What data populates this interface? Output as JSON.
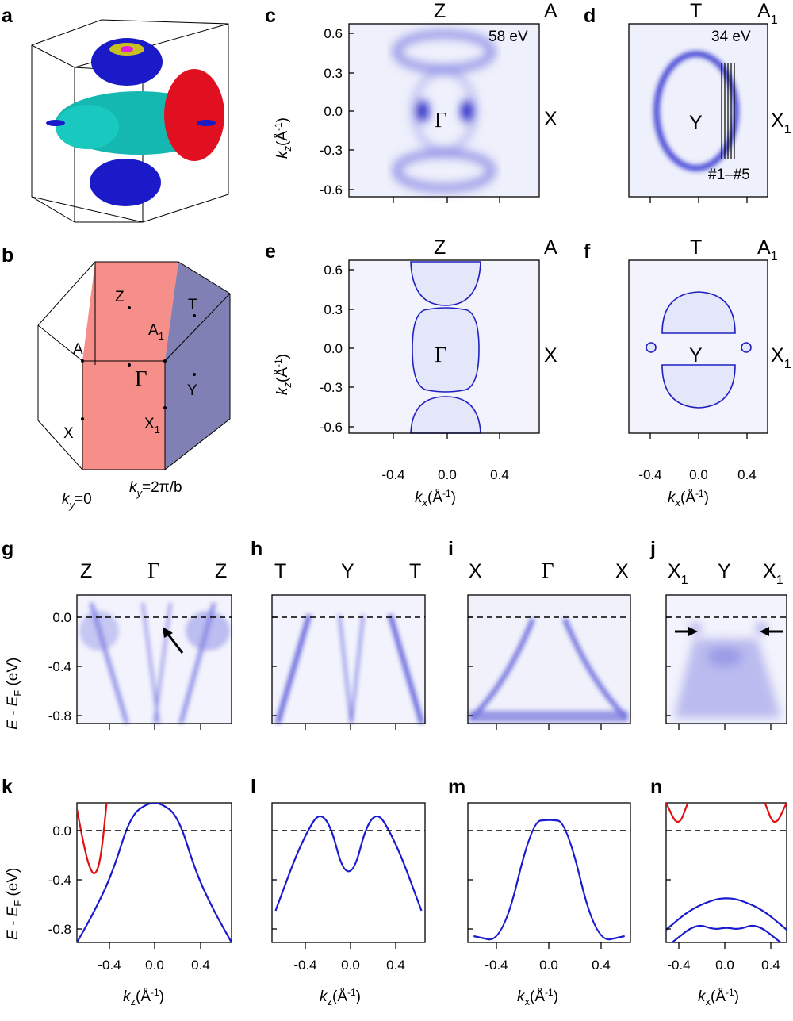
{
  "panel_letters": [
    "a",
    "b",
    "c",
    "d",
    "e",
    "f",
    "g",
    "h",
    "i",
    "j",
    "k",
    "l",
    "m",
    "n"
  ],
  "bz_labels": {
    "Z": "Z",
    "T": "T",
    "A": "A",
    "A1": "A",
    "A1_sub": "1",
    "G": "Γ",
    "Y": "Y",
    "X": "X",
    "X1": "X",
    "X1_sub": "1"
  },
  "cut_labels": {
    "ky0": "k",
    "ky0_sub": "y",
    "ky0_val": "=0",
    "ky2": "k",
    "ky2_sub": "y",
    "ky2_val": "=2π/b"
  },
  "maps": {
    "c": {
      "top": [
        "Z",
        "A"
      ],
      "right": "X",
      "center": "Γ",
      "energy": "58 eV"
    },
    "d": {
      "top": [
        "T",
        "A1"
      ],
      "right": "X1",
      "center": "Y",
      "energy": "34 eV",
      "cuts": "#1–#5"
    },
    "e": {
      "top": [
        "Z",
        "A"
      ],
      "right": "X",
      "center": "Γ"
    },
    "f": {
      "top": [
        "T",
        "A1"
      ],
      "right": "X1",
      "center": "Y"
    }
  },
  "map_ticks": {
    "kz": [
      "0.6",
      "0.3",
      "0.0",
      "-0.3",
      "-0.6"
    ],
    "kx": [
      "-0.4",
      "0.0",
      "0.4"
    ]
  },
  "cuts_top": {
    "g": [
      "Z",
      "Γ",
      "Z"
    ],
    "h": [
      "T",
      "Y",
      "T"
    ],
    "i": [
      "X",
      "Γ",
      "X"
    ],
    "j": [
      "X1",
      "Y",
      "X1"
    ]
  },
  "energy_ticks": [
    "0.0",
    "-0.4",
    "-0.8"
  ],
  "k_ticks": [
    "-0.4",
    "0.0",
    "0.4"
  ],
  "axis_labels": {
    "kz": "k",
    "kz_sub": "z",
    "kx": "k",
    "kx_sub": "x",
    "unit": "(Å",
    "unit_sup": "-1",
    "close": ")",
    "E": "E - E",
    "E_sub": "F",
    "E_unit": " (eV)"
  },
  "chart_data": [
    {
      "panel": "k",
      "type": "line",
      "xlabel": "kz (Å-1)",
      "ylabel": "E - EF (eV)",
      "xlim": [
        -0.65,
        0.65
      ],
      "ylim": [
        -0.9,
        0.2
      ],
      "series": [
        {
          "color": "#1a1ad0",
          "x": [
            -0.65,
            -0.5,
            -0.35,
            -0.2,
            -0.05,
            0.05,
            0.2,
            0.35,
            0.5,
            0.65
          ],
          "y": [
            -0.9,
            -0.65,
            -0.35,
            0.1,
            0.2,
            0.2,
            0.1,
            -0.35,
            -0.65,
            -0.9
          ]
        },
        {
          "color": "#e01010",
          "x": [
            -0.65,
            -0.6,
            -0.55,
            -0.5,
            -0.45,
            -0.4
          ],
          "y": [
            0.15,
            -0.1,
            -0.3,
            -0.38,
            -0.25,
            0.2
          ]
        }
      ]
    },
    {
      "panel": "l",
      "type": "line",
      "xlabel": "kz (Å-1)",
      "xlim": [
        -0.65,
        0.65
      ],
      "ylim": [
        -0.9,
        0.2
      ],
      "series": [
        {
          "color": "#1a1ad0",
          "x": [
            -0.62,
            -0.4,
            -0.2,
            0,
            0.2,
            0.4,
            0.62
          ],
          "y": [
            -0.65,
            -0.1,
            0.2,
            -0.52,
            0.2,
            -0.1,
            -0.65
          ]
        }
      ]
    },
    {
      "panel": "m",
      "type": "line",
      "xlabel": "kx (Å-1)",
      "xlim": [
        -0.7,
        0.7
      ],
      "ylim": [
        -0.9,
        0.2
      ],
      "series": [
        {
          "color": "#1a1ad0",
          "x": [
            -0.65,
            -0.4,
            -0.15,
            0,
            0.15,
            0.4,
            0.65
          ],
          "y": [
            -0.85,
            -0.9,
            0.05,
            0.07,
            0.05,
            -0.9,
            -0.85
          ]
        }
      ]
    },
    {
      "panel": "n",
      "type": "line",
      "xlabel": "kx (Å-1)",
      "xlim": [
        -0.5,
        0.5
      ],
      "ylim": [
        -0.9,
        0.2
      ],
      "series": [
        {
          "color": "#1a1ad0",
          "x": [
            -0.5,
            -0.3,
            -0.1,
            0,
            0.1,
            0.3,
            0.5
          ],
          "y": [
            -0.8,
            -0.64,
            -0.56,
            -0.55,
            -0.56,
            -0.64,
            -0.8
          ]
        },
        {
          "color": "#1a1ad0",
          "x": [
            -0.45,
            -0.25,
            -0.1,
            0,
            0.1,
            0.25,
            0.45
          ],
          "y": [
            -0.9,
            -0.75,
            -0.8,
            -0.78,
            -0.8,
            -0.75,
            -0.9
          ]
        },
        {
          "color": "#e01010",
          "x": [
            -0.5,
            -0.4,
            -0.32
          ],
          "y": [
            0.2,
            0.0,
            0.2
          ]
        },
        {
          "color": "#e01010",
          "x": [
            0.32,
            0.4,
            0.5
          ],
          "y": [
            0.2,
            0.0,
            0.2
          ]
        }
      ]
    }
  ]
}
